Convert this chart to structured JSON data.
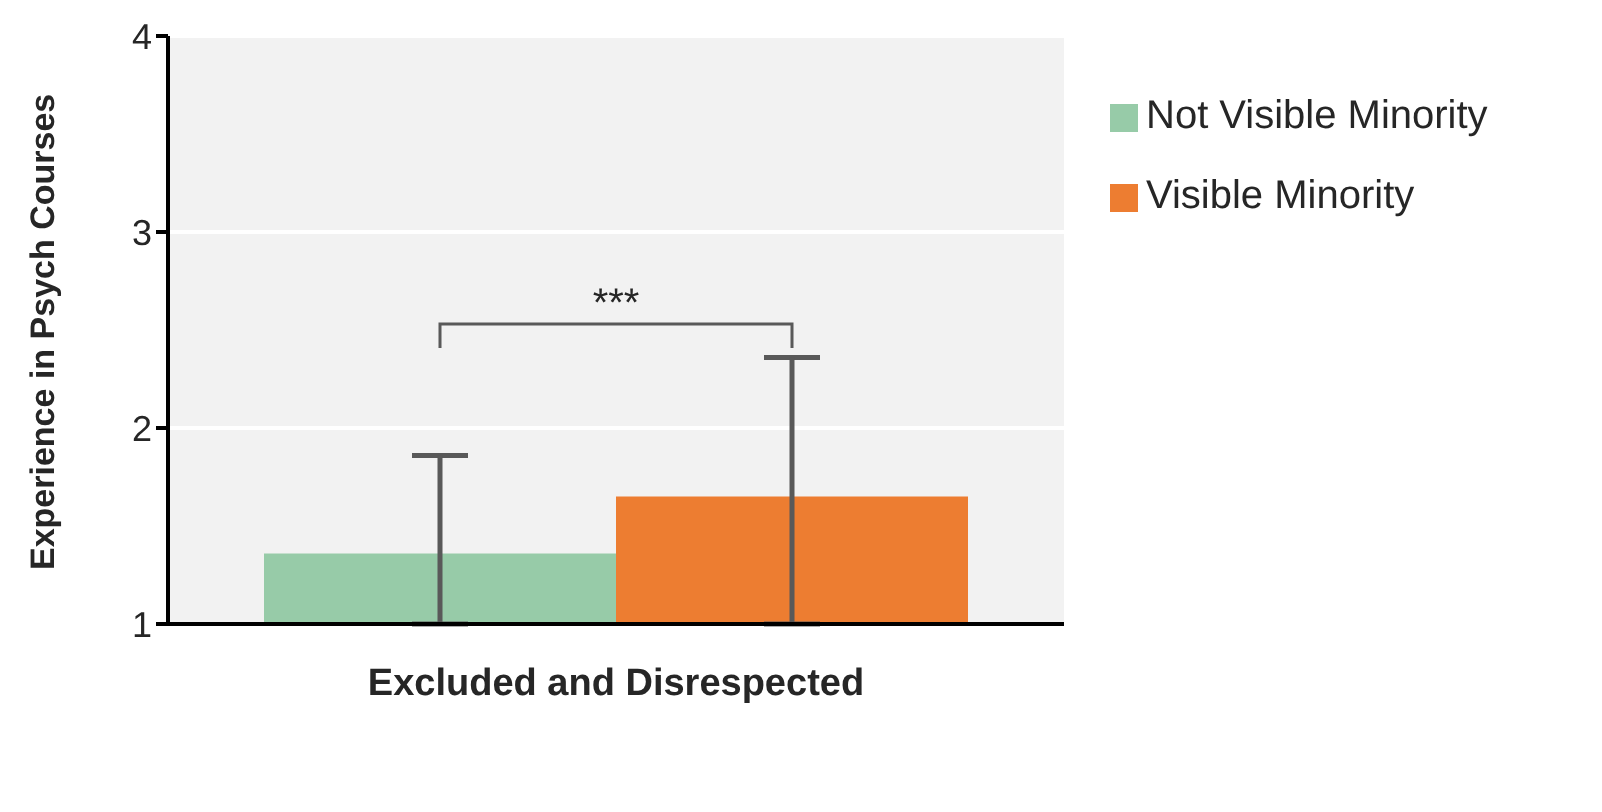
{
  "chart_data": {
    "type": "bar",
    "ylabel": "Experience in Psych Courses",
    "categories": [
      "Excluded and Disrespected"
    ],
    "series": [
      {
        "name": "Not Visible Minority",
        "color": "#97cba8",
        "values": [
          1.36
        ],
        "errors": [
          [
            1,
            1.86
          ]
        ]
      },
      {
        "name": "Visible Minority",
        "color": "#ed7d31",
        "values": [
          1.65
        ],
        "errors": [
          [
            1,
            2.36
          ]
        ]
      }
    ],
    "ylim": [
      1,
      4
    ],
    "yticks": [
      1,
      2,
      3,
      4
    ],
    "grid": "y",
    "legend": "right",
    "annotations": [
      "***"
    ]
  }
}
